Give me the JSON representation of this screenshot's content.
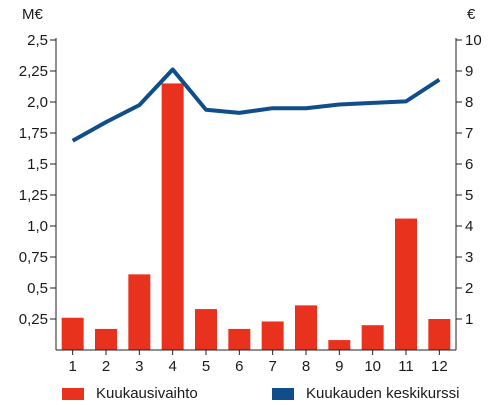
{
  "chart_data": {
    "type": "bar",
    "units": {
      "left": "M€",
      "right": "€"
    },
    "categories": [
      "1",
      "2",
      "3",
      "4",
      "5",
      "6",
      "7",
      "8",
      "9",
      "10",
      "11",
      "12"
    ],
    "ylim_left": [
      0,
      2.5
    ],
    "ylim_right": [
      0,
      10
    ],
    "yticks_left": [
      "0,25",
      "0,5",
      "0,75",
      "1,0",
      "1,25",
      "1,5",
      "1,75",
      "2,0",
      "2,25",
      "2,5"
    ],
    "yticks_right": [
      "1",
      "2",
      "3",
      "4",
      "5",
      "6",
      "7",
      "8",
      "9",
      "10"
    ],
    "series": [
      {
        "name": "Kuukausivaihto",
        "type": "bar",
        "axis": "left",
        "color": "#e8321e",
        "values": [
          0.26,
          0.17,
          0.61,
          2.15,
          0.33,
          0.17,
          0.23,
          0.36,
          0.08,
          0.2,
          1.06,
          0.25
        ]
      },
      {
        "name": "Kuukauden keskikurssi",
        "type": "line",
        "axis": "right",
        "color": "#0f4e8a",
        "values": [
          6.75,
          7.35,
          7.9,
          9.05,
          7.75,
          7.65,
          7.8,
          7.8,
          7.92,
          7.97,
          8.02,
          8.72
        ]
      }
    ],
    "grid": false,
    "legend": "bottom"
  }
}
